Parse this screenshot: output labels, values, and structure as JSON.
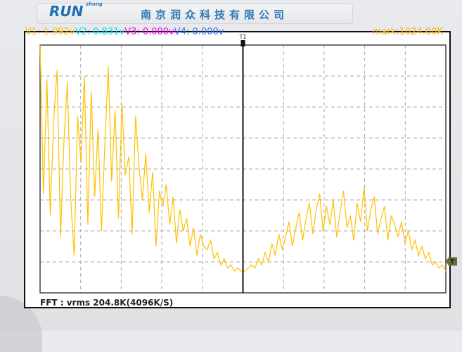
{
  "header": {
    "logo_text": "RUN",
    "logo_small": "zhong",
    "company_name": "南京润众科技有限公司"
  },
  "readouts": [
    {
      "label": "V1: 1.992v",
      "color": "#ffc000"
    },
    {
      "label": "V2: 0.831v",
      "color": "#00e5ff"
    },
    {
      "label": "V3: 0.000v",
      "color": "#ff00ff"
    },
    {
      "label": "V4: 0.000v",
      "color": "#3b6cff"
    }
  ],
  "mark": "mark:1024.00K",
  "cursor_label": "T1",
  "trigger_label": "T",
  "footer": "FFT : vrms 204.8K(4096K/S)",
  "colors": {
    "trace": "#ffc000",
    "grid": "#aaaaaa",
    "cursor": "#111111",
    "trigger": "#6b6a3a"
  },
  "chart_data": {
    "type": "line",
    "grid": true,
    "x_divisions": 10,
    "y_divisions": 8,
    "cursor_position_fraction": 0.5,
    "reference_level_divisions": 0.9,
    "values_divisions": [
      8.0,
      3.2,
      6.9,
      2.5,
      5.6,
      7.2,
      1.8,
      4.9,
      6.8,
      3.0,
      1.2,
      5.7,
      4.2,
      7.0,
      2.2,
      6.5,
      3.1,
      5.3,
      2.0,
      4.8,
      7.3,
      3.6,
      5.9,
      2.4,
      6.1,
      3.8,
      4.4,
      1.9,
      5.7,
      4.1,
      3.0,
      4.5,
      2.6,
      3.9,
      1.5,
      3.3,
      2.8,
      3.5,
      2.2,
      3.1,
      1.6,
      2.7,
      2.0,
      2.4,
      1.5,
      2.1,
      1.2,
      1.9,
      1.5,
      1.4,
      1.7,
      1.1,
      1.3,
      0.9,
      1.1,
      0.8,
      0.9,
      0.7,
      0.8,
      0.7,
      0.7,
      0.8,
      0.9,
      0.8,
      1.1,
      0.9,
      1.3,
      1.0,
      1.6,
      1.2,
      1.9,
      1.4,
      1.8,
      2.3,
      1.5,
      2.1,
      2.6,
      1.7,
      2.4,
      2.9,
      1.9,
      2.7,
      3.2,
      2.0,
      2.8,
      2.2,
      3.0,
      1.8,
      2.6,
      3.3,
      2.1,
      2.5,
      1.7,
      2.9,
      2.3,
      3.4,
      2.0,
      2.7,
      3.1,
      1.9,
      2.4,
      2.8,
      1.7,
      2.5,
      2.2,
      1.8,
      2.3,
      1.6,
      2.0,
      1.4,
      1.7,
      1.2,
      1.5,
      1.1,
      1.3,
      0.9,
      1.0,
      0.8,
      0.9,
      0.7
    ]
  }
}
